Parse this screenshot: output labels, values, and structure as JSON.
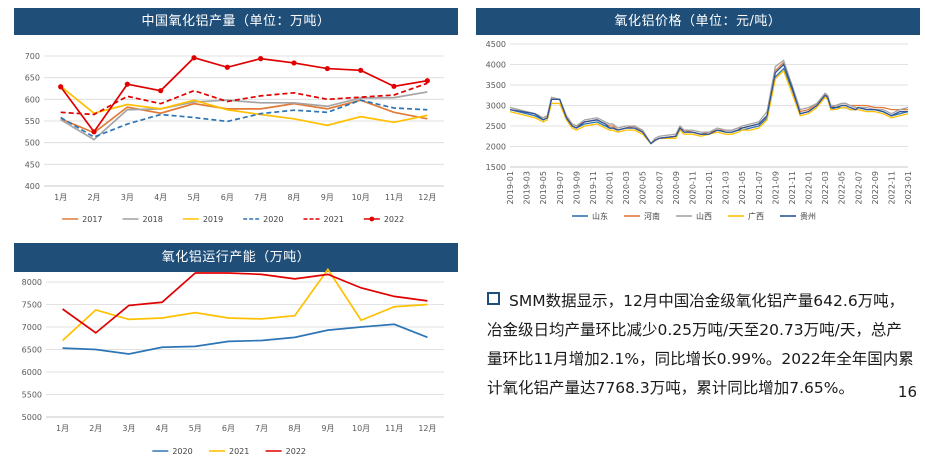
{
  "chart_data": [
    {
      "id": "production",
      "type": "line",
      "title": "中国氧化铝产量（单位：万吨）",
      "categories": [
        "1月",
        "2月",
        "3月",
        "4月",
        "5月",
        "6月",
        "7月",
        "8月",
        "9月",
        "10月",
        "11月",
        "12月"
      ],
      "ylim": [
        400,
        700
      ],
      "yticks": [
        400,
        450,
        500,
        550,
        600,
        650,
        700
      ],
      "grid": true,
      "legend": "bottom",
      "series": [
        {
          "name": "2017",
          "color": "#e07b39",
          "dash": "solid",
          "marker": false,
          "values": [
            555,
            523,
            582,
            568,
            590,
            578,
            578,
            590,
            578,
            598,
            570,
            555
          ]
        },
        {
          "name": "2018",
          "color": "#a5a5a5",
          "dash": "solid",
          "marker": false,
          "values": [
            553,
            507,
            576,
            578,
            594,
            598,
            592,
            592,
            584,
            603,
            604,
            617
          ]
        },
        {
          "name": "2019",
          "color": "#ffc000",
          "dash": "solid",
          "marker": false,
          "values": [
            630,
            568,
            588,
            578,
            598,
            576,
            565,
            555,
            540,
            560,
            547,
            563
          ]
        },
        {
          "name": "2020",
          "color": "#2e75b6",
          "dash": "dashed",
          "marker": false,
          "values": [
            558,
            513,
            543,
            565,
            558,
            549,
            567,
            575,
            570,
            598,
            580,
            576
          ]
        },
        {
          "name": "2021",
          "color": "#e00000",
          "dash": "dashed",
          "marker": false,
          "values": [
            570,
            565,
            607,
            590,
            620,
            595,
            608,
            615,
            600,
            605,
            610,
            637
          ]
        },
        {
          "name": "2022",
          "color": "#e00000",
          "dash": "solid",
          "marker": true,
          "values": [
            629,
            525,
            635,
            620,
            696,
            674,
            694,
            684,
            671,
            667,
            630,
            643
          ]
        }
      ]
    },
    {
      "id": "price",
      "type": "line",
      "title": "氧化铝价格（单位：元/吨）",
      "ylim": [
        1500,
        4500
      ],
      "yticks": [
        1500,
        2000,
        2500,
        3000,
        3500,
        4000,
        4500
      ],
      "grid": true,
      "legend": "bottom",
      "x_tick_labels": [
        "2019-01",
        "2019-03",
        "2019-05",
        "2019-07",
        "2019-09",
        "2019-11",
        "2020-01",
        "2020-03",
        "2020-05",
        "2020-07",
        "2020-09",
        "2020-11",
        "2021-01",
        "2021-03",
        "2021-05",
        "2021-07",
        "2021-09",
        "2021-11",
        "2022-01",
        "2022-03",
        "2022-05",
        "2022-07",
        "2022-09",
        "2022-11",
        "2023-01"
      ],
      "series": [
        {
          "name": "山东",
          "color": "#2e75b6",
          "x": [
            0,
            3,
            4,
            4.5,
            5,
            6,
            6.8,
            7.5,
            8,
            9,
            10.5,
            11,
            11.5,
            12,
            12.4,
            13,
            14,
            15,
            16,
            17,
            17.5,
            18,
            20,
            20.5,
            21,
            22,
            23,
            24,
            25,
            26,
            26.8,
            27.5,
            28,
            29,
            30,
            31,
            32,
            33,
            34,
            35,
            36,
            37,
            38,
            38.3,
            38.7,
            39.3,
            40,
            40.5,
            41,
            41.7,
            42,
            43,
            44,
            45,
            46,
            47,
            48
          ],
          "values": [
            2900,
            2750,
            2650,
            2700,
            3150,
            3150,
            2700,
            2500,
            2450,
            2550,
            2600,
            2550,
            2500,
            2450,
            2450,
            2400,
            2450,
            2500,
            2350,
            2070,
            2150,
            2200,
            2250,
            2450,
            2350,
            2350,
            2300,
            2300,
            2400,
            2350,
            2350,
            2400,
            2400,
            2450,
            2500,
            2700,
            3700,
            3900,
            3400,
            2800,
            2850,
            3000,
            3250,
            3200,
            2900,
            2950,
            2950,
            2950,
            2900,
            2900,
            2950,
            2900,
            2900,
            2850,
            2750,
            2800,
            2850
          ]
        },
        {
          "name": "河南",
          "color": "#e07b39",
          "x": [
            0,
            3,
            4,
            4.5,
            5,
            6,
            6.8,
            7.5,
            8,
            9,
            10.5,
            11,
            11.5,
            12,
            12.4,
            13,
            14,
            15,
            16,
            17,
            17.5,
            18,
            20,
            20.5,
            21,
            22,
            23,
            24,
            25,
            26,
            26.8,
            27.5,
            28,
            29,
            30,
            31,
            32,
            33,
            34,
            35,
            36,
            37,
            38,
            38.3,
            38.7,
            39.3,
            40,
            40.5,
            41,
            41.7,
            42,
            43,
            44,
            45,
            46,
            47,
            48
          ],
          "values": [
            2950,
            2800,
            2700,
            2750,
            3150,
            3150,
            2750,
            2550,
            2500,
            2600,
            2650,
            2600,
            2550,
            2500,
            2500,
            2400,
            2450,
            2500,
            2350,
            2070,
            2150,
            2200,
            2250,
            2450,
            2400,
            2350,
            2300,
            2350,
            2400,
            2400,
            2400,
            2450,
            2450,
            2500,
            2550,
            2750,
            3850,
            4050,
            3500,
            2850,
            2900,
            3050,
            3250,
            3250,
            2950,
            3000,
            3050,
            3050,
            3000,
            3000,
            3000,
            3000,
            2950,
            2950,
            2900,
            2900,
            2900
          ]
        },
        {
          "name": "山西",
          "color": "#a5a5a5",
          "x": [
            0,
            3,
            4,
            4.5,
            5,
            6,
            6.8,
            7.5,
            8,
            9,
            10.5,
            11,
            11.5,
            12,
            12.4,
            13,
            14,
            15,
            16,
            17,
            17.5,
            18,
            20,
            20.5,
            21,
            22,
            23,
            24,
            25,
            26,
            26.8,
            27.5,
            28,
            29,
            30,
            31,
            32,
            33,
            34,
            35,
            36,
            37,
            38,
            38.3,
            38.7,
            39.3,
            40,
            40.5,
            41,
            41.7,
            42,
            43,
            44,
            45,
            46,
            47,
            48
          ],
          "values": [
            2950,
            2800,
            2700,
            2750,
            3200,
            3150,
            2750,
            2550,
            2500,
            2650,
            2700,
            2650,
            2600,
            2550,
            2550,
            2450,
            2500,
            2500,
            2400,
            2070,
            2200,
            2250,
            2300,
            2500,
            2400,
            2400,
            2350,
            2350,
            2450,
            2400,
            2400,
            2450,
            2500,
            2550,
            2600,
            2850,
            3950,
            4100,
            3500,
            2900,
            2950,
            3050,
            3300,
            3250,
            3000,
            3000,
            3050,
            3050,
            3000,
            2950,
            2950,
            2950,
            2900,
            2900,
            2800,
            2900,
            2950
          ]
        },
        {
          "name": "广西",
          "color": "#ffc000",
          "x": [
            0,
            3,
            4,
            4.5,
            5,
            6,
            6.8,
            7.5,
            8,
            9,
            10.5,
            11,
            11.5,
            12,
            12.4,
            13,
            14,
            15,
            16,
            17,
            17.5,
            18,
            20,
            20.5,
            21,
            22,
            23,
            24,
            25,
            26,
            26.8,
            27.5,
            28,
            29,
            30,
            31,
            32,
            33,
            34,
            35,
            36,
            37,
            38,
            38.3,
            38.7,
            39.3,
            40,
            40.5,
            41,
            41.7,
            42,
            43,
            44,
            45,
            46,
            47,
            48
          ],
          "values": [
            2850,
            2700,
            2600,
            2650,
            3050,
            3050,
            2650,
            2450,
            2400,
            2500,
            2550,
            2500,
            2450,
            2400,
            2400,
            2350,
            2400,
            2400,
            2300,
            2070,
            2150,
            2200,
            2200,
            2400,
            2300,
            2300,
            2250,
            2300,
            2350,
            2300,
            2300,
            2350,
            2400,
            2400,
            2450,
            2650,
            3650,
            3850,
            3300,
            2750,
            2800,
            2950,
            3200,
            3150,
            2900,
            2900,
            2950,
            2950,
            2900,
            2900,
            2900,
            2850,
            2850,
            2800,
            2700,
            2750,
            2800
          ]
        },
        {
          "name": "贵州",
          "color": "#2f5597",
          "x": [
            0,
            3,
            4,
            4.5,
            5,
            6,
            6.8,
            7.5,
            8,
            9,
            10.5,
            11,
            11.5,
            12,
            12.4,
            13,
            14,
            15,
            16,
            17,
            17.5,
            18,
            20,
            20.5,
            21,
            22,
            23,
            24,
            25,
            26,
            26.8,
            27.5,
            28,
            29,
            30,
            31,
            32,
            33,
            34,
            35,
            36,
            37,
            38,
            38.3,
            38.7,
            39.3,
            40,
            40.5,
            41,
            41.7,
            42,
            43,
            44,
            45,
            46,
            47,
            48
          ],
          "values": [
            2900,
            2800,
            2650,
            2700,
            3150,
            3150,
            2700,
            2500,
            2450,
            2600,
            2650,
            2600,
            2550,
            2450,
            2450,
            2400,
            2450,
            2450,
            2350,
            2070,
            2150,
            2200,
            2250,
            2450,
            2350,
            2350,
            2300,
            2300,
            2400,
            2350,
            2350,
            2400,
            2450,
            2500,
            2550,
            2750,
            3800,
            4000,
            3450,
            2800,
            2850,
            3000,
            3250,
            3200,
            2950,
            2950,
            3000,
            3000,
            2950,
            2900,
            2950,
            2900,
            2900,
            2850,
            2750,
            2850,
            2850
          ]
        }
      ]
    },
    {
      "id": "capacity",
      "type": "line",
      "title": "氧化铝运行产能（万吨）",
      "categories": [
        "1月",
        "2月",
        "3月",
        "4月",
        "5月",
        "6月",
        "7月",
        "8月",
        "9月",
        "10月",
        "11月",
        "12月"
      ],
      "ylim": [
        5000,
        8000
      ],
      "yticks": [
        5000,
        5500,
        6000,
        6500,
        7000,
        7500,
        8000
      ],
      "grid": true,
      "legend": "bottom",
      "series": [
        {
          "name": "2020",
          "color": "#2e75b6",
          "dash": "solid",
          "marker": false,
          "values": [
            6530,
            6500,
            6400,
            6550,
            6570,
            6680,
            6700,
            6770,
            6930,
            7000,
            7060,
            6770
          ]
        },
        {
          "name": "2021",
          "color": "#ffc000",
          "dash": "solid",
          "marker": false,
          "values": [
            6700,
            7380,
            7170,
            7200,
            7320,
            7200,
            7180,
            7250,
            8280,
            7150,
            7450,
            7500
          ]
        },
        {
          "name": "2022",
          "color": "#e00000",
          "dash": "solid",
          "marker": false,
          "values": [
            7400,
            6870,
            7480,
            7550,
            8200,
            8200,
            8170,
            8070,
            8170,
            7870,
            7680,
            7580
          ]
        }
      ]
    }
  ],
  "summary": {
    "text": "SMM数据显示，12月中国冶金级氧化铝产量642.6万吨，冶金级日均产量环比减少0.25万吨/天至20.73万吨/天，总产量环比11月增加2.1%，同比增长0.99%。2022年全年国内累计氧化铝产量达7768.3万吨，累计同比增加7.65%。"
  },
  "page_number": "16"
}
